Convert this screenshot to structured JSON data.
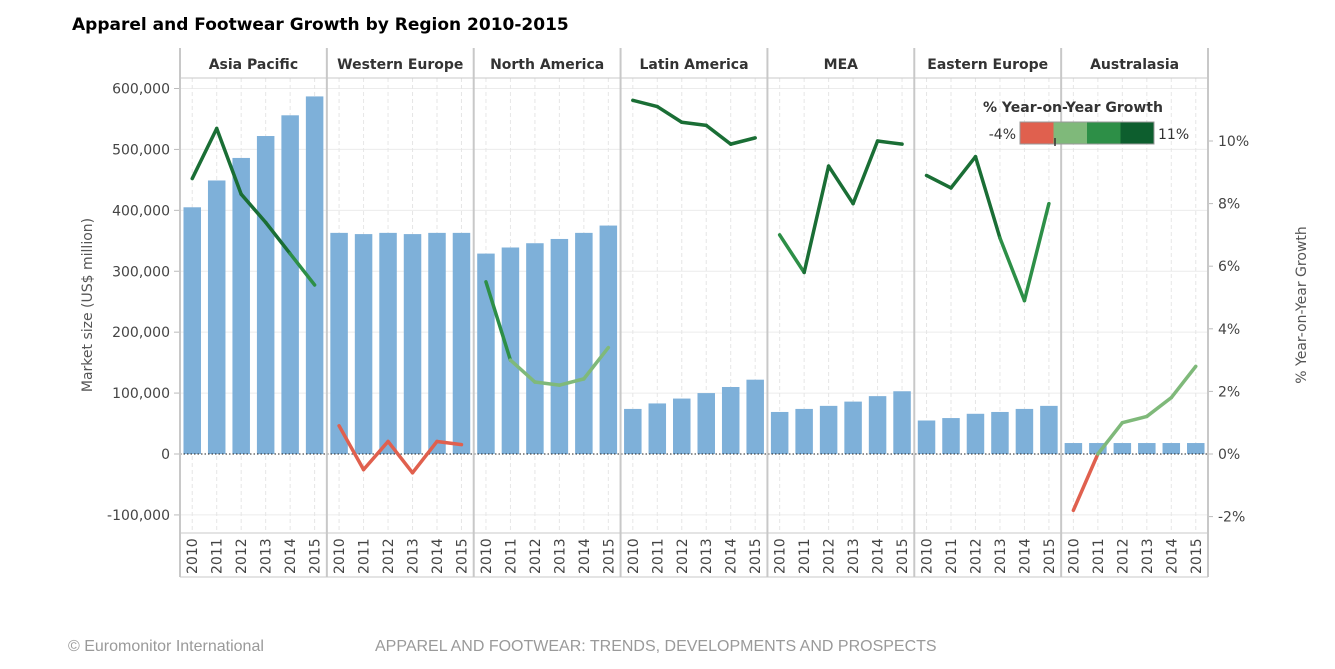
{
  "chart_data": {
    "type": "bar+line",
    "title": "Apparel and Footwear Growth by Region 2010-2015",
    "ylabel": "Market size (US$ million)",
    "y2label": "% Year-on-Year Growth",
    "ylim": [
      -130000,
      615000
    ],
    "y2lim": [
      -2.5,
      12.3
    ],
    "y_ticks": [
      -100000,
      0,
      100000,
      200000,
      300000,
      400000,
      500000,
      600000
    ],
    "y_tick_labels": [
      "-100,000",
      "0",
      "100,000",
      "200,000",
      "300,000",
      "400,000",
      "500,000",
      "600,000"
    ],
    "y2_ticks": [
      -2,
      0,
      2,
      4,
      6,
      8,
      10
    ],
    "y2_tick_labels": [
      "-2%",
      "0%",
      "2%",
      "4%",
      "6%",
      "8%",
      "10%"
    ],
    "years": [
      "2010",
      "2011",
      "2012",
      "2013",
      "2014",
      "2015"
    ],
    "legend": {
      "title": "% Year-on-Year Growth",
      "min_label": "-4%",
      "max_label": "11%",
      "colors": [
        "#e0604e",
        "#7fb97a",
        "#2d8f47",
        "#0d5e2e"
      ]
    },
    "regions": [
      {
        "name": "Asia Pacific",
        "market_size": [
          405000,
          449000,
          486000,
          522000,
          556000,
          587000
        ],
        "growth": [
          8.8,
          10.4,
          8.3,
          7.4,
          6.4,
          5.4
        ]
      },
      {
        "name": "Western Europe",
        "market_size": [
          363000,
          361000,
          363000,
          361000,
          363000,
          363000
        ],
        "growth": [
          0.9,
          -0.5,
          0.4,
          -0.6,
          0.4,
          0.3
        ]
      },
      {
        "name": "North America",
        "market_size": [
          329000,
          339000,
          346000,
          353000,
          363000,
          375000
        ],
        "growth": [
          5.5,
          3.0,
          2.3,
          2.2,
          2.4,
          3.4
        ]
      },
      {
        "name": "Latin America",
        "market_size": [
          74000,
          83000,
          91000,
          100000,
          110000,
          122000
        ],
        "growth": [
          11.3,
          11.1,
          10.6,
          10.5,
          9.9,
          10.1
        ]
      },
      {
        "name": "MEA",
        "market_size": [
          69000,
          74000,
          79000,
          86000,
          95000,
          103000
        ],
        "growth": [
          7.0,
          5.8,
          9.2,
          8.0,
          10.0,
          9.9
        ]
      },
      {
        "name": "Eastern Europe",
        "market_size": [
          55000,
          59000,
          66000,
          69000,
          74000,
          79000
        ],
        "growth": [
          8.9,
          8.5,
          9.5,
          6.9,
          4.9,
          8.0
        ]
      },
      {
        "name": "Australasia",
        "market_size": [
          18000,
          18000,
          18000,
          18000,
          18000,
          18000
        ],
        "growth": [
          -1.8,
          0.0,
          1.0,
          1.2,
          1.8,
          2.8
        ]
      }
    ]
  },
  "footer": {
    "copyright": "© Euromonitor International",
    "report_title": "APPAREL AND FOOTWEAR: TRENDS, DEVELOPMENTS AND PROSPECTS"
  }
}
